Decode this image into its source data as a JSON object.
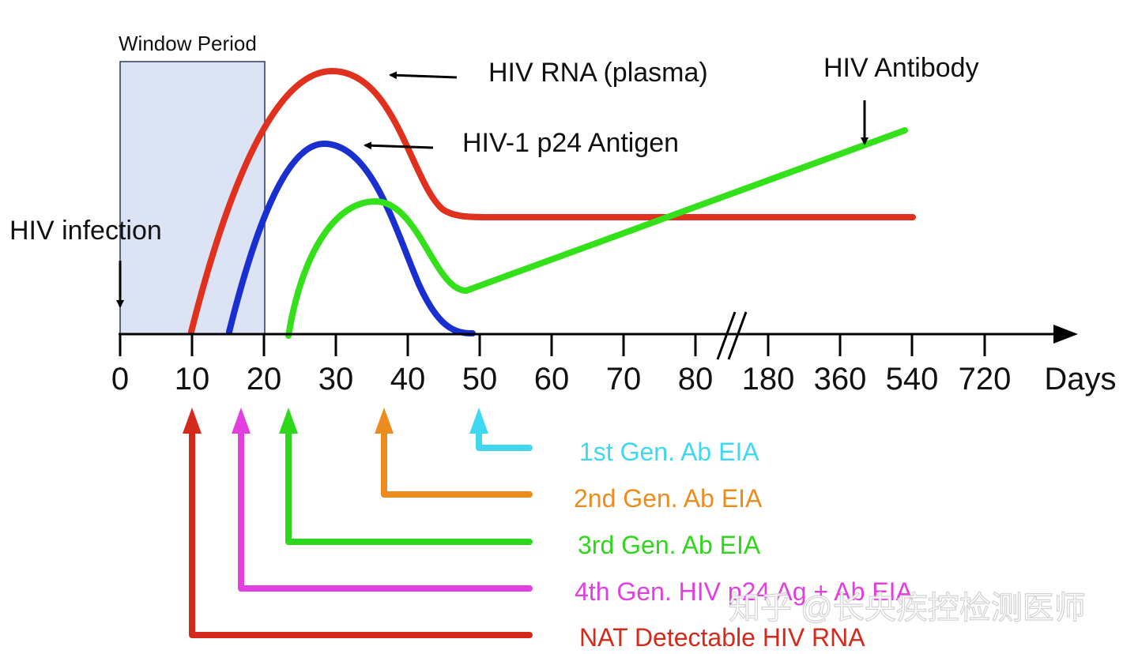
{
  "window_label": "Window Period",
  "infection_label": "HIV infection",
  "axis_unit": "Days",
  "x_ticks": [
    "0",
    "10",
    "20",
    "30",
    "40",
    "50",
    "60",
    "70",
    "80",
    "180",
    "360",
    "540",
    "720"
  ],
  "curves": {
    "rna": {
      "label": "HIV RNA (plasma)",
      "color": "#e0301e"
    },
    "p24": {
      "label": "HIV-1 p24 Antigen",
      "color": "#1a2fd0"
    },
    "antibody": {
      "label": "HIV Antibody",
      "color": "#33e01a"
    }
  },
  "tests": [
    {
      "label": "1st Gen. Ab EIA",
      "color": "#3fd8f0"
    },
    {
      "label": "2nd Gen. Ab EIA",
      "color": "#ec8c1e"
    },
    {
      "label": "3rd Gen. Ab EIA",
      "color": "#2ed61c"
    },
    {
      "label": "4th Gen. HIV p24 Ag + Ab EIA",
      "color": "#e23fe0"
    },
    {
      "label": "NAT Detectable HIV RNA",
      "color": "#d42a1c"
    }
  ],
  "watermark": "知乎 @长央疾控检测医师",
  "colors": {
    "window_fill": "#dbe3f5",
    "window_stroke": "#2a3a5a",
    "axis": "#000000"
  }
}
